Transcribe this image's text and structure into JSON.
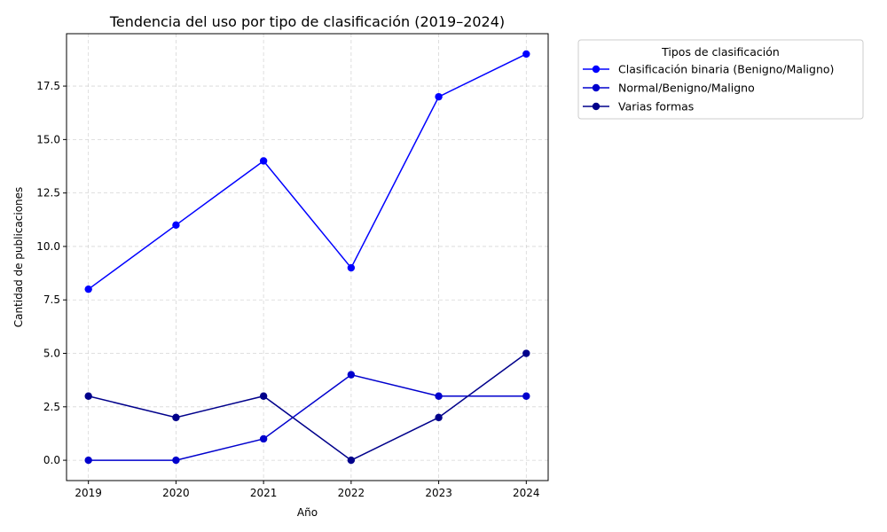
{
  "chart_data": {
    "type": "line",
    "title": "Tendencia del uso por tipo de clasificación (2019–2024)",
    "xlabel": "Año",
    "ylabel": "Cantidad de publicaciones",
    "x": [
      2019,
      2020,
      2021,
      2022,
      2023,
      2024
    ],
    "x_tick_labels": [
      "2019",
      "2020",
      "2021",
      "2022",
      "2023",
      "2024"
    ],
    "xlim": [
      2018.75,
      2024.25
    ],
    "ylim": [
      -0.95,
      19.95
    ],
    "y_ticks": [
      0.0,
      2.5,
      5.0,
      7.5,
      10.0,
      12.5,
      15.0,
      17.5
    ],
    "y_tick_labels": [
      "0.0",
      "2.5",
      "5.0",
      "7.5",
      "10.0",
      "12.5",
      "15.0",
      "17.5"
    ],
    "grid": true,
    "legend_title": "Tipos de clasificación",
    "legend_position": "outside-top-right",
    "series": [
      {
        "name": "Clasificación binaria (Benigno/Maligno)",
        "color": "#0000ff",
        "values": [
          8,
          11,
          14,
          9,
          17,
          19
        ]
      },
      {
        "name": "Normal/Benigno/Maligno",
        "color": "#0000cd",
        "values": [
          0,
          0,
          1,
          4,
          3,
          3
        ]
      },
      {
        "name": "Varias formas",
        "color": "#00008b",
        "values": [
          3,
          2,
          3,
          0,
          2,
          5
        ]
      }
    ]
  }
}
